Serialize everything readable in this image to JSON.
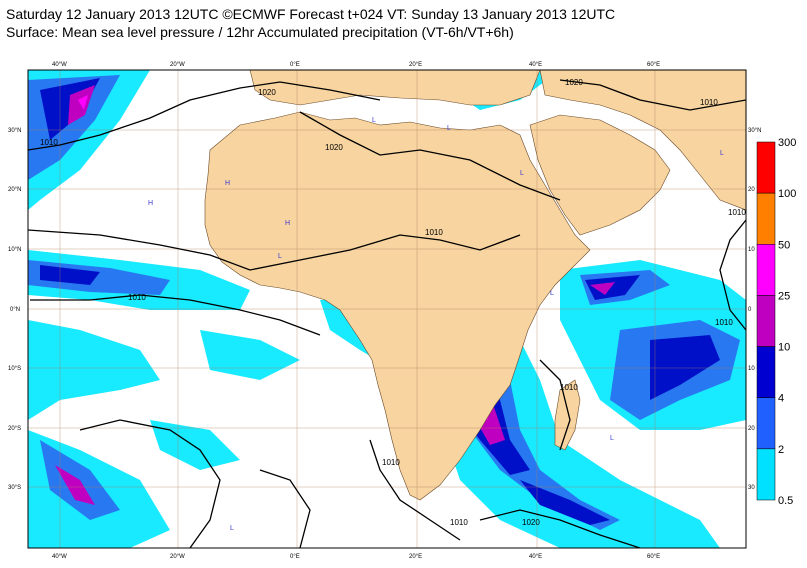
{
  "header": {
    "title_line1": "Saturday 12 January 2013 12UTC ©ECMWF Forecast t+024 VT: Sunday 13 January 2013 12UTC",
    "title_line2": "Surface: Mean sea level pressure / 12hr Accumulated precipitation (VT-6h/VT+6h)"
  },
  "map": {
    "lon_labels": [
      "40°W",
      "20°W",
      "0°E",
      "20°E",
      "40°E",
      "60°E"
    ],
    "lat_labels_left": [
      "30°N",
      "20°N",
      "10°N",
      "0°N",
      "10°S",
      "20°S",
      "30°S"
    ],
    "lat_labels_right": [
      "30°N",
      "20",
      "10",
      "0",
      "10",
      "20",
      "30"
    ],
    "isobar_labels": [
      "1010",
      "1020",
      "1020",
      "1020",
      "1010",
      "1010",
      "1010",
      "1010",
      "1010",
      "1010",
      "1010",
      "1010",
      "1020"
    ],
    "pressure_mark": "L",
    "high_mark": "H",
    "colors": {
      "land": "#f7d4a0",
      "ocean": "#ffffff",
      "isobar": "#000000",
      "grid": "#b07a5a"
    }
  },
  "legend": {
    "bins": [
      {
        "label": "300",
        "color": "#ff0000"
      },
      {
        "label": "100",
        "color": "#ff8000"
      },
      {
        "label": "50",
        "color": "#ff00ff"
      },
      {
        "label": "25",
        "color": "#c000c0"
      },
      {
        "label": "10",
        "color": "#0000d0"
      },
      {
        "label": "4",
        "color": "#2060ff"
      },
      {
        "label": "2",
        "color": "#00e0ff"
      },
      {
        "label": "0.5",
        "color": "#ffffff"
      }
    ]
  }
}
